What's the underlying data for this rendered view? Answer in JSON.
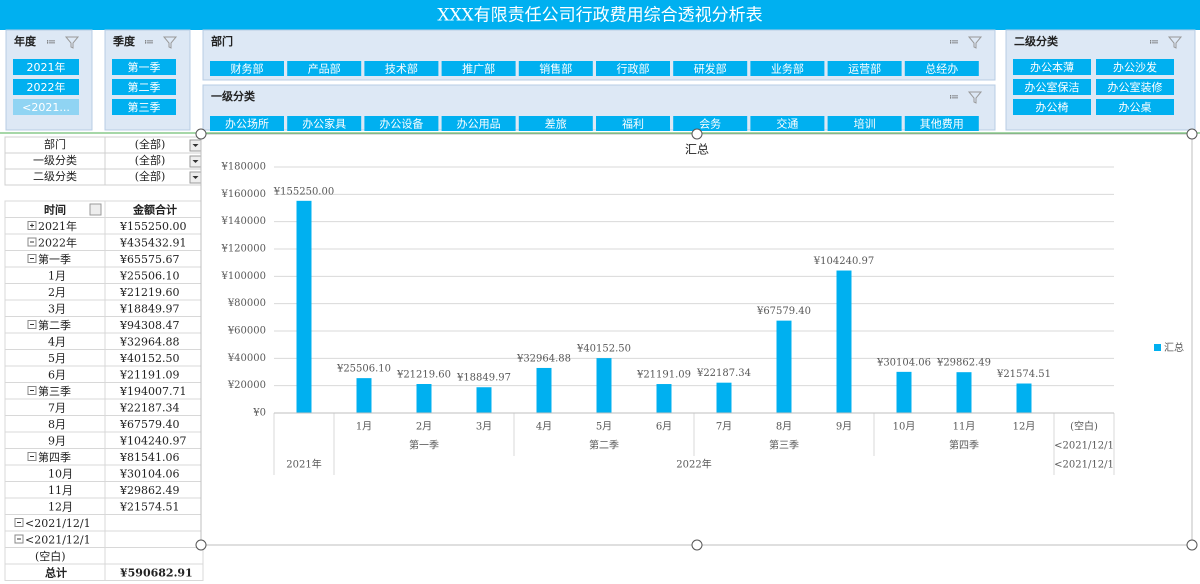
{
  "header": {
    "title": "XXX有限责任公司行政费用综合透视分析表"
  },
  "slicers": {
    "year": {
      "title": "年度",
      "items": [
        "2021年",
        "2022年",
        "<2021..."
      ]
    },
    "quarter": {
      "title": "季度",
      "items": [
        "第一季",
        "第二季",
        "第三季"
      ]
    },
    "department": {
      "title": "部门",
      "items": [
        "财务部",
        "产品部",
        "技术部",
        "推广部",
        "销售部",
        "行政部",
        "研发部",
        "业务部",
        "运营部",
        "总经办"
      ]
    },
    "category1": {
      "title": "一级分类",
      "items": [
        "办公场所",
        "办公家具",
        "办公设备",
        "办公用品",
        "差旅",
        "福利",
        "会务",
        "交通",
        "培训",
        "其他费用"
      ]
    },
    "category2": {
      "title": "二级分类",
      "items": [
        "办公本薄",
        "办公沙发",
        "办公室保洁",
        "办公室装修",
        "办公椅",
        "办公桌"
      ]
    }
  },
  "filters": [
    [
      "部门",
      "(全部)"
    ],
    [
      "一级分类",
      "(全部)"
    ],
    [
      "二级分类",
      "(全部)"
    ]
  ],
  "pivot": {
    "headers": [
      "时间",
      "金额合计"
    ],
    "rows": [
      {
        "label": "2021年",
        "amount": "¥155250.00"
      },
      {
        "label": "2022年",
        "amount": "¥435432.91",
        "children": [
          {
            "label": "第一季",
            "amount": "¥65575.67",
            "children": [
              {
                "label": "1月",
                "amount": "¥25506.10"
              },
              {
                "label": "2月",
                "amount": "¥21219.60"
              },
              {
                "label": "3月",
                "amount": "¥18849.97"
              }
            ]
          },
          {
            "label": "第二季",
            "amount": "¥94308.47",
            "children": [
              {
                "label": "4月",
                "amount": "¥32964.88"
              },
              {
                "label": "5月",
                "amount": "¥40152.50"
              },
              {
                "label": "6月",
                "amount": "¥21191.09"
              }
            ]
          },
          {
            "label": "第三季",
            "amount": "¥194007.71",
            "children": [
              {
                "label": "7月",
                "amount": "¥22187.34"
              },
              {
                "label": "8月",
                "amount": "¥67579.40"
              },
              {
                "label": "9月",
                "amount": "¥104240.97"
              }
            ]
          },
          {
            "label": "第四季",
            "amount": "¥81541.06",
            "children": [
              {
                "label": "10月",
                "amount": "¥30104.06"
              },
              {
                "label": "11月",
                "amount": "¥29862.49"
              },
              {
                "label": "12月",
                "amount": "¥21574.51"
              }
            ]
          }
        ]
      },
      {
        "label": "<2021/12/1",
        "amount": null,
        "children": [
          {
            "label": "<2021/12/1",
            "amount": null,
            "children": [
              {
                "label": "(空白)",
                "amount": null
              }
            ]
          }
        ]
      }
    ],
    "total": {
      "label": "总计",
      "amount": "¥590682.91"
    }
  },
  "chart_data": {
    "type": "bar",
    "title": "汇总",
    "categories": [
      null,
      "1月",
      "2月",
      "3月",
      "4月",
      "5月",
      "6月",
      "7月",
      "8月",
      "9月",
      "10月",
      "11月",
      "12月",
      "(空白)"
    ],
    "quarter_groups": [
      {
        "label": null,
        "count": 1
      },
      {
        "label": "第一季",
        "count": 3
      },
      {
        "label": "第二季",
        "count": 3
      },
      {
        "label": "第三季",
        "count": 3
      },
      {
        "label": "第四季",
        "count": 3
      },
      {
        "label": "<2021/12/1",
        "count": 1
      }
    ],
    "year_groups": [
      {
        "label": "2021年",
        "count": 1
      },
      {
        "label": "2022年",
        "count": 12
      },
      {
        "label": "<2021/12/1",
        "count": 1
      }
    ],
    "series": [
      {
        "name": "汇总",
        "color": "#00b0f0",
        "values": [
          155250.0,
          25506.1,
          21219.6,
          18849.97,
          32964.88,
          40152.5,
          21191.09,
          22187.34,
          67579.4,
          104240.97,
          30104.06,
          29862.49,
          21574.51,
          null
        ],
        "value_labels": [
          "¥155250.00",
          "¥25506.10",
          "¥21219.60",
          "¥18849.97",
          "¥32964.88",
          "¥40152.50",
          "¥21191.09",
          "¥22187.34",
          "¥67579.40",
          "¥104240.97",
          "¥30104.06",
          "¥29862.49",
          "¥21574.51",
          null
        ]
      }
    ],
    "ylim": [
      0,
      180000
    ],
    "yticks": [
      {
        "value": 0,
        "label": "¥0"
      },
      {
        "value": 20000,
        "label": "¥20000"
      },
      {
        "value": 40000,
        "label": "¥40000"
      },
      {
        "value": 60000,
        "label": "¥60000"
      },
      {
        "value": 80000,
        "label": "¥80000"
      },
      {
        "value": 100000,
        "label": "¥100000"
      },
      {
        "value": 120000,
        "label": "¥120000"
      },
      {
        "value": 140000,
        "label": "¥140000"
      },
      {
        "value": 160000,
        "label": "¥160000"
      },
      {
        "value": 180000,
        "label": "¥180000"
      }
    ],
    "grid": true,
    "legend": "right"
  }
}
